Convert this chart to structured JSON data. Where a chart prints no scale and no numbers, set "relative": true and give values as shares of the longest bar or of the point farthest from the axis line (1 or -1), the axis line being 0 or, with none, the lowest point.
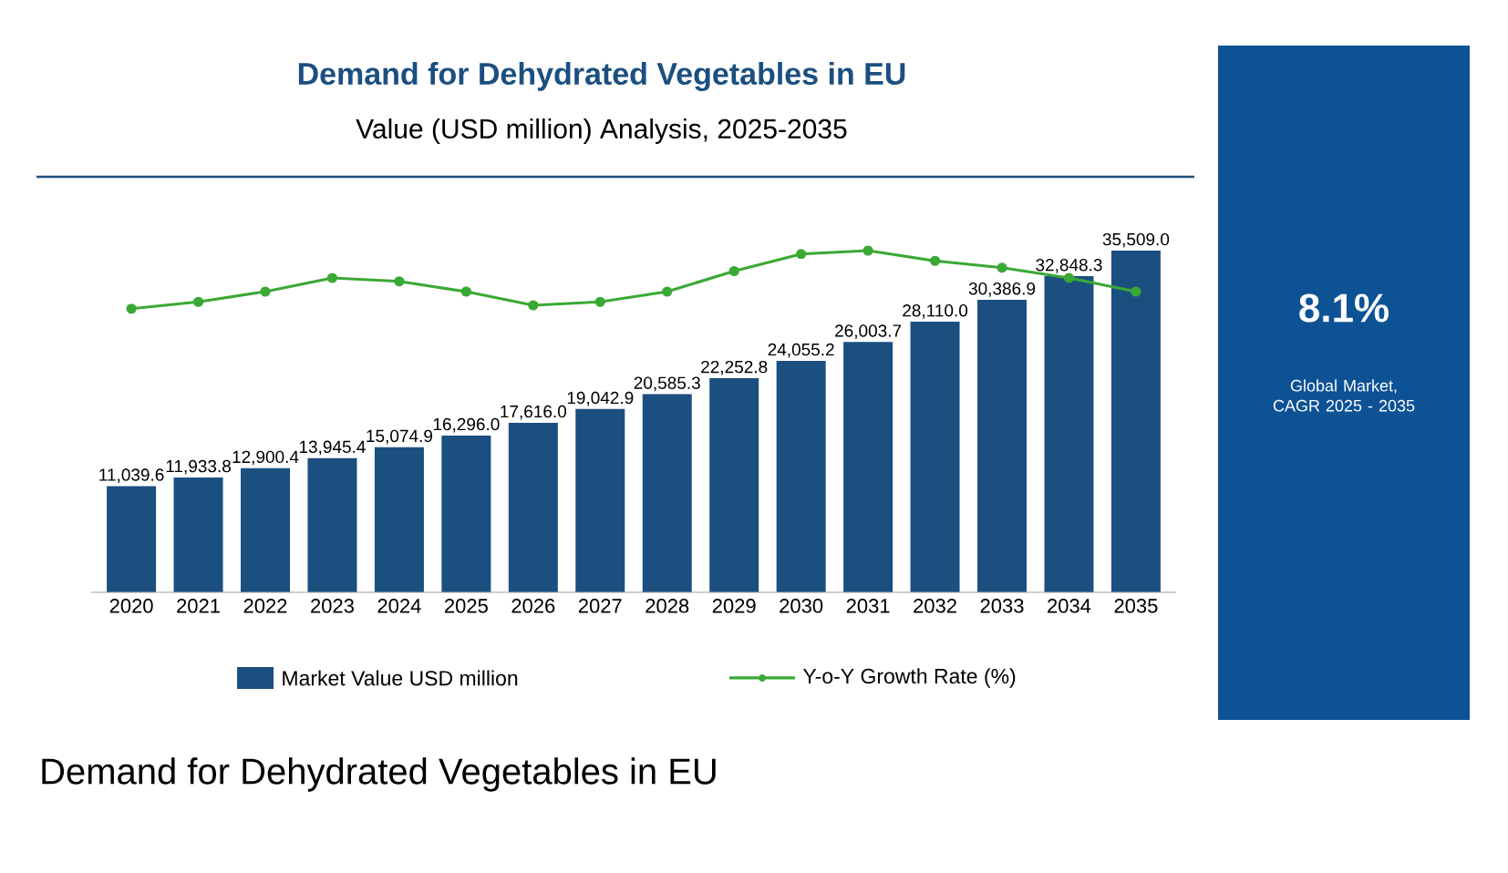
{
  "chart_data": [
    {
      "type": "bar",
      "title": "Demand for Dehydrated Vegetables in EU",
      "subtitle": "Value (USD million) Analysis, 2025-2035",
      "categories": [
        "2020",
        "2021",
        "2022",
        "2023",
        "2024",
        "2025",
        "2026",
        "2027",
        "2028",
        "2029",
        "2030",
        "2031",
        "2032",
        "2033",
        "2034",
        "2035"
      ],
      "series": [
        {
          "name": "Market Value USD million",
          "color": "#1b4f80",
          "values": [
            11039.6,
            11933.8,
            12900.4,
            13945.4,
            15074.9,
            16296.0,
            17616.0,
            19042.9,
            20585.3,
            22252.8,
            24055.2,
            26003.7,
            28110.0,
            30386.9,
            32848.3,
            35509.0
          ],
          "value_labels": [
            "11,039.6",
            "11,933.8",
            "12,900.4",
            "13,945.4",
            "15,074.9",
            "16,296.0",
            "17,616.0",
            "19,042.9",
            "20,585.3",
            "22,252.8",
            "24,055.2",
            "26,003.7",
            "28,110.0",
            "30,386.9",
            "32,848.3",
            "35,509.0"
          ]
        }
      ],
      "legend": "bottom",
      "tick_labels": false,
      "annotations": [
        "8.1%",
        "Global Market, CAGR 2025 - 2035",
        "Demand for Dehydrated Vegetables in EU"
      ]
    },
    {
      "type": "line",
      "relative": true,
      "tick_labels": "x",
      "marker": "circle",
      "legend": "bottom",
      "categories": [
        "2020",
        "2021",
        "2022",
        "2023",
        "2024",
        "2025",
        "2026",
        "2027",
        "2028",
        "2029",
        "2030",
        "2031",
        "2032",
        "2033",
        "2034",
        "2035"
      ],
      "series": [
        {
          "name": "Y-o-Y Growth Rate (%)",
          "color": "#3aa935",
          "values": [
            0.83,
            0.85,
            0.88,
            0.92,
            0.91,
            0.88,
            0.84,
            0.85,
            0.88,
            0.94,
            0.99,
            1.0,
            0.97,
            0.95,
            0.92,
            0.88
          ]
        }
      ]
    }
  ]
}
